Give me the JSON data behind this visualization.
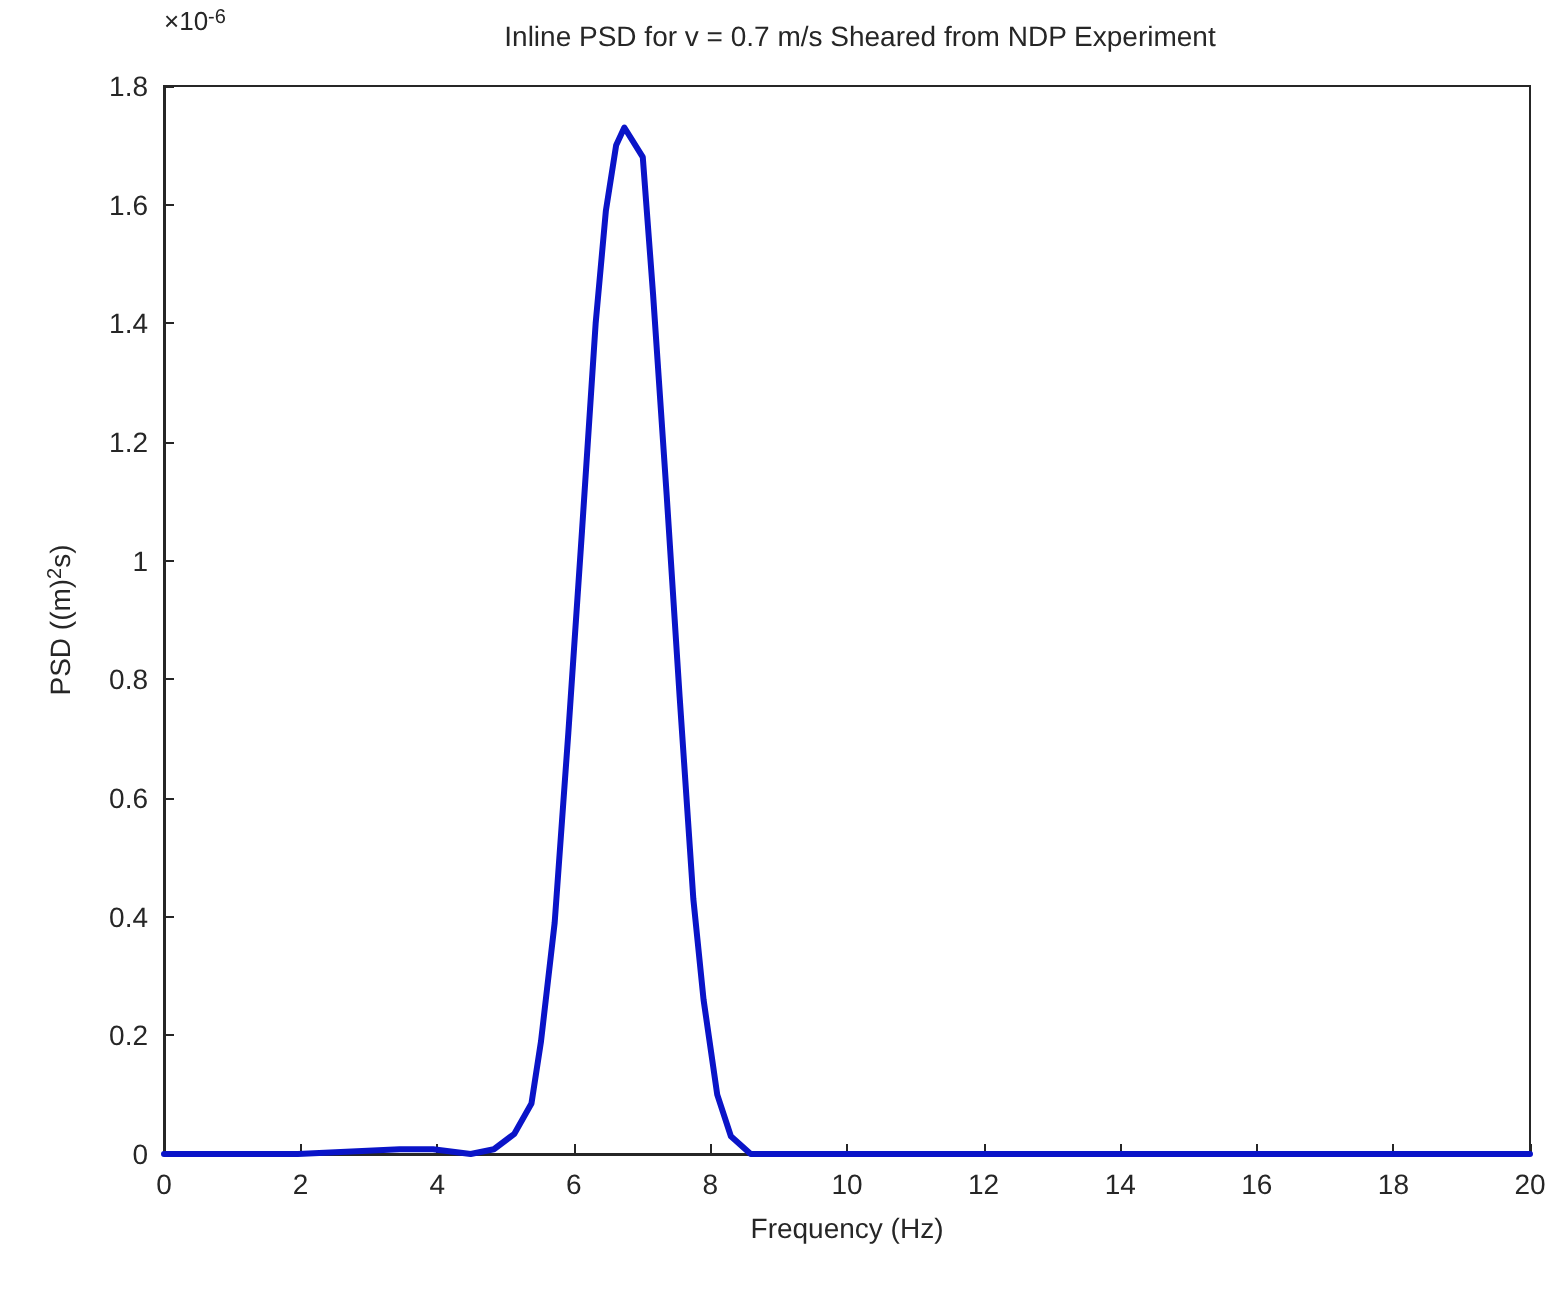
{
  "chart_data": {
    "type": "line",
    "title": "Inline PSD for v = 0.7 m/s Sheared from NDP Experiment",
    "xlabel": "Frequency (Hz)",
    "ylabel": "PSD ((m)$^{2}$s)",
    "annotations": [
      "×10$^{-6}$"
    ],
    "series": [
      {
        "color": "#0a14c8",
        "x": [
          0,
          1.96,
          3.45,
          3.94,
          4.49,
          4.83,
          5.13,
          5.38,
          5.52,
          5.72,
          5.92,
          6.12,
          6.32,
          6.47,
          6.62,
          6.74,
          7.01,
          7.16,
          7.36,
          7.55,
          7.75,
          7.9,
          8.1,
          8.3,
          8.59,
          20
        ],
        "values": [
          0,
          0,
          0.008,
          0.008,
          0,
          0.008,
          0.034,
          0.085,
          0.19,
          0.39,
          0.71,
          1.05,
          1.4,
          1.59,
          1.7,
          1.73,
          1.68,
          1.45,
          1.11,
          0.77,
          0.43,
          0.26,
          0.1,
          0.03,
          0,
          0
        ]
      }
    ],
    "xlim": [
      0,
      20
    ],
    "xticks": [
      0,
      2,
      4,
      6,
      8,
      10,
      12,
      14,
      16,
      18,
      20
    ],
    "ylim": [
      0,
      1.8
    ],
    "yticks": [
      0,
      0.2,
      0.4,
      0.6,
      0.8,
      1,
      1.2,
      1.4,
      1.6,
      1.8
    ],
    "grid": false,
    "marker": "none",
    "line_style": "solid"
  }
}
